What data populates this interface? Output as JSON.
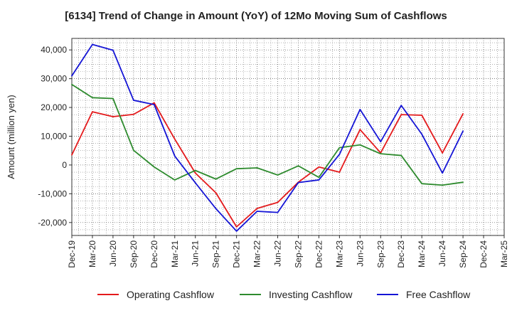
{
  "chart_data": {
    "type": "line",
    "title": "[6134]  Trend of Change in Amount (YoY) of 12Mo Moving Sum of Cashflows",
    "xlabel": "",
    "ylabel": "Amount (million yen)",
    "ylim": [
      -24500,
      44000
    ],
    "yticks": [
      -20000,
      -10000,
      0,
      10000,
      20000,
      30000,
      40000
    ],
    "ytick_labels": [
      "-20,000",
      "-10,000",
      "0",
      "10,000",
      "20,000",
      "30,000",
      "40,000"
    ],
    "grid": true,
    "legend_position": "bottom",
    "categories": [
      "Dec-19",
      "Mar-20",
      "Jun-20",
      "Sep-20",
      "Dec-20",
      "Mar-21",
      "Jun-21",
      "Sep-21",
      "Dec-21",
      "Mar-22",
      "Jun-22",
      "Sep-22",
      "Dec-22",
      "Mar-23",
      "Jun-23",
      "Sep-23",
      "Dec-23",
      "Mar-24",
      "Jun-24",
      "Sep-24",
      "Dec-24",
      "Mar-25"
    ],
    "series": [
      {
        "name": "Operating Cashflow",
        "color": "#e41a1c",
        "values": [
          3500,
          18500,
          16800,
          17600,
          21600,
          9000,
          -2800,
          -9700,
          -21500,
          -15100,
          -13000,
          -6000,
          -700,
          -2500,
          12300,
          4200,
          17500,
          17300,
          4200,
          17800,
          null,
          null
        ]
      },
      {
        "name": "Investing Cashflow",
        "color": "#2e8b2e",
        "values": [
          28000,
          23400,
          23100,
          5100,
          -700,
          -5200,
          -1900,
          -4900,
          -1300,
          -1000,
          -3500,
          -300,
          -4300,
          6000,
          7000,
          3900,
          3300,
          -6500,
          -7000,
          -6000,
          null,
          null
        ]
      },
      {
        "name": "Free Cashflow",
        "color": "#1515d6",
        "values": [
          31000,
          41900,
          39900,
          22500,
          21000,
          3100,
          -6200,
          -15200,
          -23000,
          -16100,
          -16500,
          -6100,
          -5200,
          3700,
          19300,
          8100,
          20700,
          10700,
          -2800,
          11800,
          null,
          null
        ]
      }
    ]
  }
}
